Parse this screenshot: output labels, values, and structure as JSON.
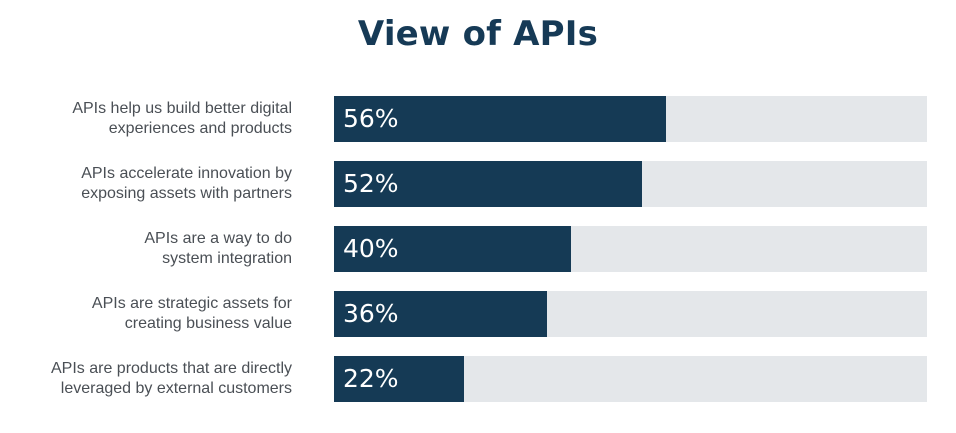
{
  "chart_data": {
    "type": "bar",
    "orientation": "horizontal",
    "title": "View of APIs",
    "categories": [
      "APIs help us build better digital\nexperiences and products",
      "APIs accelerate innovation by\nexposing assets with partners",
      "APIs are a way to do\nsystem integration",
      "APIs are strategic assets for\ncreating business value",
      "APIs are products that are directly\nleveraged by external customers"
    ],
    "values": [
      56,
      52,
      40,
      36,
      22
    ],
    "value_labels": [
      "56%",
      "52%",
      "40%",
      "36%",
      "22%"
    ],
    "xlim": [
      0,
      100
    ],
    "xlabel": "",
    "ylabel": "",
    "grid": false,
    "legend": "none",
    "colors": {
      "title": "#163a56",
      "bar": "#153a55",
      "track": "#e4e7ea",
      "label": "#4a4f55",
      "value_text": "#ffffff"
    }
  }
}
